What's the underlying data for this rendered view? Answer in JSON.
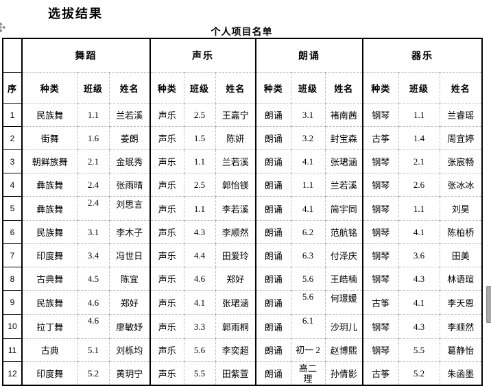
{
  "page": {
    "title": "选拔结果",
    "subtitle": "个人项目名单"
  },
  "icons": {
    "move_handle": "table-move-handle (4-way arrows)",
    "scrollbar_thumb": "vertical-scrollbar-thumb"
  },
  "colors": {
    "border": "#000000",
    "gridline": "#bcbcbc",
    "scrollbar": "#a8a8a8",
    "background": "#ffffff",
    "text": "#000000"
  },
  "table": {
    "corner_label": "序",
    "groups": [
      {
        "label": "舞蹈",
        "columns": [
          "种类",
          "班级",
          "姓名"
        ]
      },
      {
        "label": "声乐",
        "columns": [
          "种类",
          "班级",
          "姓名"
        ]
      },
      {
        "label": "朗诵",
        "columns": [
          "种类",
          "班级",
          "姓名"
        ]
      },
      {
        "label": "器乐",
        "columns": [
          "种类",
          "班级",
          "姓名"
        ]
      }
    ],
    "rows": [
      {
        "no": "1",
        "cells": [
          "民族舞",
          "1.1",
          "兰若溪",
          "声乐",
          "2.5",
          "王嘉宁",
          "朗诵",
          "3.1",
          "褚南茜",
          "钢琴",
          "1.1",
          "兰睿瑶"
        ]
      },
      {
        "no": "2",
        "cells": [
          "街舞",
          "1.6",
          "姜朗",
          "声乐",
          "1.5",
          "陈妍",
          "朗诵",
          "3.2",
          "封宝森",
          "古筝",
          "1.4",
          "周宜婷"
        ]
      },
      {
        "no": "3",
        "cells": [
          "朝鲜族舞",
          "2.1",
          "金珉秀",
          "声乐",
          "1.1",
          "兰若溪",
          "朗诵",
          "4.1",
          "张珺涵",
          "钢琴",
          "2.1",
          "张宸畅"
        ]
      },
      {
        "no": "4",
        "cells": [
          "彝族舞",
          "2.4",
          "张雨晴",
          "声乐",
          "2.5",
          "郭怡镁",
          "朗诵",
          "1.1",
          "兰若溪",
          "钢琴",
          "2.6",
          "张冰冰"
        ]
      },
      {
        "no": "5",
        "cells": [
          "彝族舞",
          "2.4",
          "刘思言",
          "声乐",
          "1.1",
          "李若溪",
          "朗诵",
          "4.1",
          "简宇同",
          "钢琴",
          "1.1",
          "刘昊"
        ],
        "top": [
          1,
          2
        ]
      },
      {
        "no": "6",
        "cells": [
          "民族舞",
          "3.1",
          "李木子",
          "声乐",
          "4.3",
          "李顺然",
          "朗诵",
          "6.2",
          "范航铭",
          "钢琴",
          "4.1",
          "陈柏桥"
        ]
      },
      {
        "no": "7",
        "cells": [
          "印度舞",
          "3.4",
          "冯世日",
          "声乐",
          "4.4",
          "田爱玲",
          "朗诵",
          "6.3",
          "付泽庆",
          "钢琴",
          "3.6",
          "田美"
        ]
      },
      {
        "no": "8",
        "cells": [
          "古典舞",
          "4.5",
          "陈宜",
          "声乐",
          "4.6",
          "郑好",
          "朗诵",
          "5.6",
          "王皓楠",
          "钢琴",
          "4.3",
          "林语瑄"
        ]
      },
      {
        "no": "9",
        "cells": [
          "民族舞",
          "4.6",
          "郑好",
          "声乐",
          "4.1",
          "张珺涵",
          "朗诵",
          "5.6",
          "何璟媛",
          "古筝",
          "4.1",
          "李天恩"
        ],
        "top": [
          7,
          8
        ]
      },
      {
        "no": "10",
        "cells": [
          "拉丁舞",
          "4.6",
          "廖敏妤",
          "声乐",
          "3.3",
          "郭雨桐",
          "朗诵",
          "6.1",
          "沙玥儿",
          "钢琴",
          "4.3",
          "李顺然"
        ],
        "top": [
          1,
          7
        ]
      },
      {
        "no": "11",
        "cells": [
          "古典",
          "5.1",
          "刘栎均",
          "声乐",
          "5.6",
          "李奕超",
          "朗诵",
          "初一 2",
          "赵博熙",
          "钢琴",
          "5.5",
          "葛静怡"
        ]
      },
      {
        "no": "12",
        "cells": [
          "印度舞",
          "5.2",
          "黄玥宁",
          "声乐",
          "5.5",
          "田紫萱",
          "朗诵",
          "高二\n理",
          "孙倩影",
          "古筝",
          "5.2",
          "朱函墨"
        ]
      }
    ]
  }
}
